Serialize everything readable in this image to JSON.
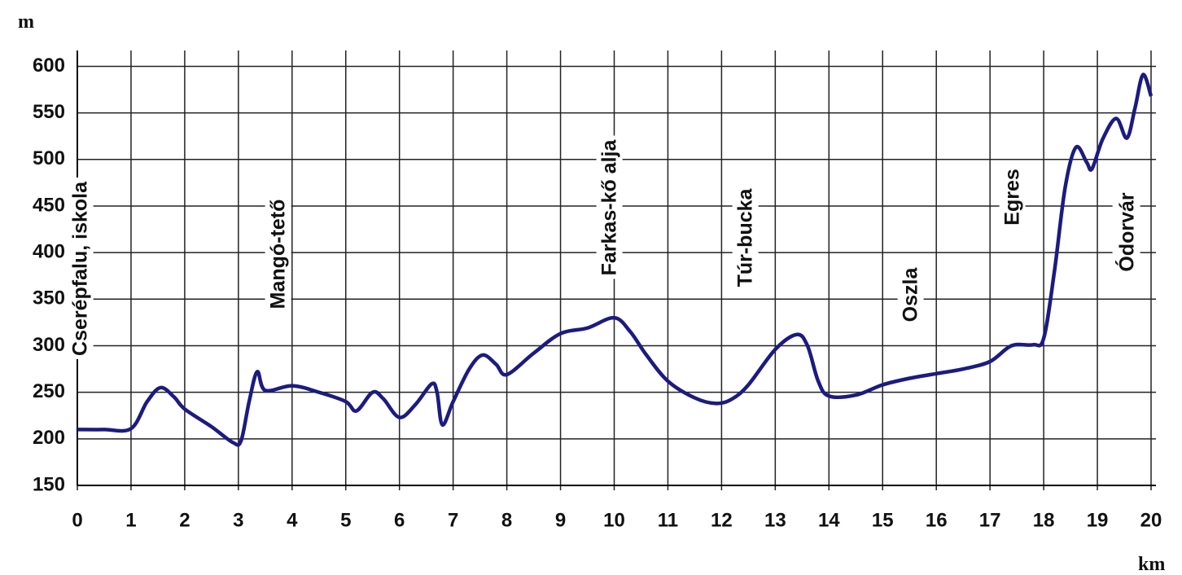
{
  "chart_data": {
    "type": "line",
    "y_label": "m",
    "x_label": "km",
    "x": [
      0,
      0.5,
      1,
      1.3,
      1.55,
      1.8,
      2,
      2.5,
      2.9,
      3.05,
      3.2,
      3.35,
      3.5,
      4,
      4.5,
      5,
      5.2,
      5.5,
      5.7,
      6,
      6.3,
      6.6,
      6.7,
      6.8,
      7,
      7.3,
      7.55,
      7.8,
      8,
      8.5,
      9,
      9.5,
      10,
      10.3,
      10.6,
      11,
      11.5,
      11.9,
      12.2,
      12.5,
      13,
      13.4,
      13.6,
      13.8,
      14,
      14.5,
      15,
      15.5,
      16,
      16.5,
      17,
      17.4,
      17.8,
      18,
      18.2,
      18.4,
      18.6,
      18.8,
      18.9,
      19.1,
      19.35,
      19.55,
      19.7,
      19.85,
      20
    ],
    "series": [
      {
        "color": "#1b1b80",
        "values": [
          210,
          210,
          211,
          240,
          255,
          245,
          232,
          213,
          196,
          198,
          240,
          272,
          252,
          257,
          250,
          240,
          230,
          250,
          243,
          223,
          237,
          259,
          250,
          215,
          240,
          275,
          290,
          280,
          269,
          292,
          313,
          319,
          330,
          315,
          290,
          262,
          244,
          238,
          243,
          258,
          296,
          312,
          300,
          262,
          246,
          247,
          258,
          265,
          270,
          275,
          283,
          300,
          301,
          308,
          380,
          470,
          513,
          497,
          490,
          522,
          544,
          523,
          555,
          591,
          568
        ]
      }
    ],
    "annotations": [
      "Cserépfalu, iskola",
      "Mangó-tető",
      "Farkas-kő alja",
      "Túr-bucka",
      "Oszla",
      "Egres",
      "Ódorvár"
    ],
    "xlim": [
      0,
      20
    ],
    "ylim": [
      150,
      617
    ],
    "xticks": [
      0,
      1,
      2,
      3,
      4,
      5,
      6,
      7,
      8,
      9,
      10,
      11,
      12,
      13,
      14,
      15,
      16,
      17,
      18,
      19,
      20
    ],
    "yticks": [
      150,
      200,
      250,
      300,
      350,
      400,
      450,
      500,
      550,
      600
    ],
    "grid": true
  }
}
